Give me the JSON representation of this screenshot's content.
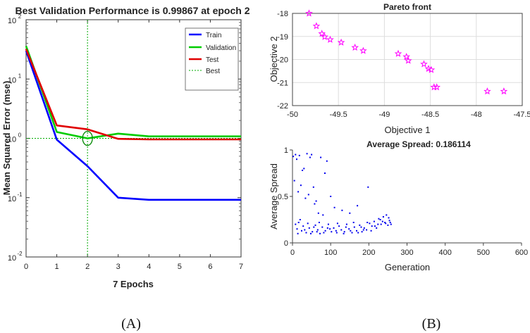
{
  "captions": {
    "a": "(A)",
    "b": "(B)"
  },
  "chart_data": [
    {
      "id": "perf",
      "type": "line",
      "title": "Best Validation Performance is 0.99867 at epoch 2",
      "xlabel": "7 Epochs",
      "ylabel": "Mean Squared Error  (mse)",
      "yscale": "log",
      "xlim": [
        0,
        7
      ],
      "ylim": [
        0.01,
        100
      ],
      "xticks": [
        0,
        1,
        2,
        3,
        4,
        5,
        6,
        7
      ],
      "yticks": [
        {
          "value": 0.01,
          "base": "10",
          "exp": "-2"
        },
        {
          "value": 0.1,
          "base": "10",
          "exp": "-1"
        },
        {
          "value": 1,
          "base": "10",
          "exp": "0"
        },
        {
          "value": 10,
          "base": "10",
          "exp": "1"
        },
        {
          "value": 100,
          "base": "10",
          "exp": "2"
        }
      ],
      "x": [
        0,
        1,
        2,
        3,
        4,
        5,
        6,
        7
      ],
      "series": [
        {
          "name": "Train",
          "color": "#0000ff",
          "values": [
            30,
            0.95,
            0.34,
            0.1,
            0.092,
            0.092,
            0.092,
            0.092
          ]
        },
        {
          "name": "Validation",
          "color": "#00cc00",
          "values": [
            36,
            1.28,
            1.0,
            1.2,
            1.08,
            1.08,
            1.08,
            1.08
          ]
        },
        {
          "name": "Test",
          "color": "#e00000",
          "values": [
            32,
            1.65,
            1.42,
            0.98,
            0.96,
            0.96,
            0.96,
            0.96
          ]
        }
      ],
      "best": {
        "name": "Best",
        "epoch": 2,
        "value": 0.99867,
        "color": "#00aa00"
      },
      "legend_position": "top-right"
    },
    {
      "id": "pareto",
      "type": "scatter",
      "title": "Pareto front",
      "xlabel": "Objective 1",
      "ylabel": "Objective 2",
      "xlim": [
        -50,
        -47.5
      ],
      "ylim": [
        -22,
        -18
      ],
      "xticks": [
        "-50",
        "-49.5",
        "-49",
        "-48.5",
        "-48",
        "-47.5"
      ],
      "yticks": [
        "-18",
        "-19",
        "-20",
        "-21",
        "-22"
      ],
      "grid": true,
      "marker": "star",
      "color": "#ff00ff",
      "points": [
        [
          -49.82,
          -18.0
        ],
        [
          -49.74,
          -18.55
        ],
        [
          -49.68,
          -18.88
        ],
        [
          -49.65,
          -19.02
        ],
        [
          -49.59,
          -19.14
        ],
        [
          -49.47,
          -19.26
        ],
        [
          -49.32,
          -19.48
        ],
        [
          -49.23,
          -19.62
        ],
        [
          -48.85,
          -19.75
        ],
        [
          -48.76,
          -19.88
        ],
        [
          -48.74,
          -20.05
        ],
        [
          -48.57,
          -20.2
        ],
        [
          -48.52,
          -20.4
        ],
        [
          -48.49,
          -20.45
        ],
        [
          -48.46,
          -21.2
        ],
        [
          -48.43,
          -21.2
        ],
        [
          -47.88,
          -21.38
        ],
        [
          -47.7,
          -21.38
        ]
      ]
    },
    {
      "id": "spread",
      "type": "scatter",
      "title": "Average Spread: 0.186114",
      "xlabel": "Generation",
      "ylabel": "Average Spread",
      "xlim": [
        0,
        600
      ],
      "ylim": [
        0,
        1
      ],
      "xticks": [
        "0",
        "100",
        "200",
        "300",
        "400",
        "500",
        "600"
      ],
      "yticks": [
        {
          "value": 0,
          "label": "0"
        },
        {
          "value": 0.5,
          "label": "0.5"
        },
        {
          "value": 1,
          "label": "1"
        }
      ],
      "color": "#0000ee",
      "points": [
        [
          2,
          0.93
        ],
        [
          5,
          0.67
        ],
        [
          8,
          0.95
        ],
        [
          11,
          0.9
        ],
        [
          15,
          0.55
        ],
        [
          18,
          0.94
        ],
        [
          22,
          0.62
        ],
        [
          26,
          0.78
        ],
        [
          30,
          0.8
        ],
        [
          34,
          0.48
        ],
        [
          38,
          0.96
        ],
        [
          42,
          0.52
        ],
        [
          46,
          0.92
        ],
        [
          50,
          0.95
        ],
        [
          55,
          0.6
        ],
        [
          58,
          0.42
        ],
        [
          62,
          0.45
        ],
        [
          68,
          0.32
        ],
        [
          74,
          0.92
        ],
        [
          80,
          0.3
        ],
        [
          85,
          0.75
        ],
        [
          90,
          0.88
        ],
        [
          100,
          0.5
        ],
        [
          110,
          0.38
        ],
        [
          130,
          0.35
        ],
        [
          150,
          0.32
        ],
        [
          170,
          0.4
        ],
        [
          198,
          0.6
        ],
        [
          8,
          0.2
        ],
        [
          12,
          0.15
        ],
        [
          16,
          0.22
        ],
        [
          24,
          0.13
        ],
        [
          28,
          0.18
        ],
        [
          36,
          0.11
        ],
        [
          44,
          0.16
        ],
        [
          52,
          0.12
        ],
        [
          60,
          0.19
        ],
        [
          66,
          0.14
        ],
        [
          72,
          0.1
        ],
        [
          78,
          0.17
        ],
        [
          86,
          0.13
        ],
        [
          94,
          0.2
        ],
        [
          102,
          0.12
        ],
        [
          108,
          0.16
        ],
        [
          116,
          0.11
        ],
        [
          122,
          0.18
        ],
        [
          128,
          0.14
        ],
        [
          136,
          0.12
        ],
        [
          142,
          0.2
        ],
        [
          148,
          0.15
        ],
        [
          156,
          0.11
        ],
        [
          162,
          0.17
        ],
        [
          168,
          0.13
        ],
        [
          176,
          0.19
        ],
        [
          182,
          0.12
        ],
        [
          188,
          0.16
        ],
        [
          194,
          0.14
        ],
        [
          202,
          0.21
        ],
        [
          208,
          0.18
        ],
        [
          214,
          0.23
        ],
        [
          220,
          0.16
        ],
        [
          226,
          0.26
        ],
        [
          232,
          0.2
        ],
        [
          238,
          0.28
        ],
        [
          242,
          0.22
        ],
        [
          246,
          0.3
        ],
        [
          250,
          0.19
        ],
        [
          254,
          0.24
        ],
        [
          258,
          0.2
        ],
        [
          14,
          0.1
        ],
        [
          32,
          0.14
        ],
        [
          48,
          0.1
        ],
        [
          64,
          0.12
        ],
        [
          82,
          0.11
        ],
        [
          98,
          0.15
        ],
        [
          114,
          0.13
        ],
        [
          134,
          0.1
        ],
        [
          152,
          0.13
        ],
        [
          172,
          0.11
        ],
        [
          186,
          0.14
        ],
        [
          206,
          0.13
        ],
        [
          224,
          0.2
        ],
        [
          236,
          0.23
        ],
        [
          252,
          0.27
        ],
        [
          20,
          0.25
        ],
        [
          40,
          0.21
        ],
        [
          56,
          0.17
        ],
        [
          70,
          0.22
        ],
        [
          92,
          0.16
        ],
        [
          118,
          0.21
        ],
        [
          140,
          0.17
        ],
        [
          160,
          0.22
        ],
        [
          180,
          0.17
        ],
        [
          196,
          0.22
        ],
        [
          216,
          0.18
        ],
        [
          230,
          0.25
        ],
        [
          244,
          0.21
        ],
        [
          256,
          0.22
        ]
      ]
    }
  ]
}
